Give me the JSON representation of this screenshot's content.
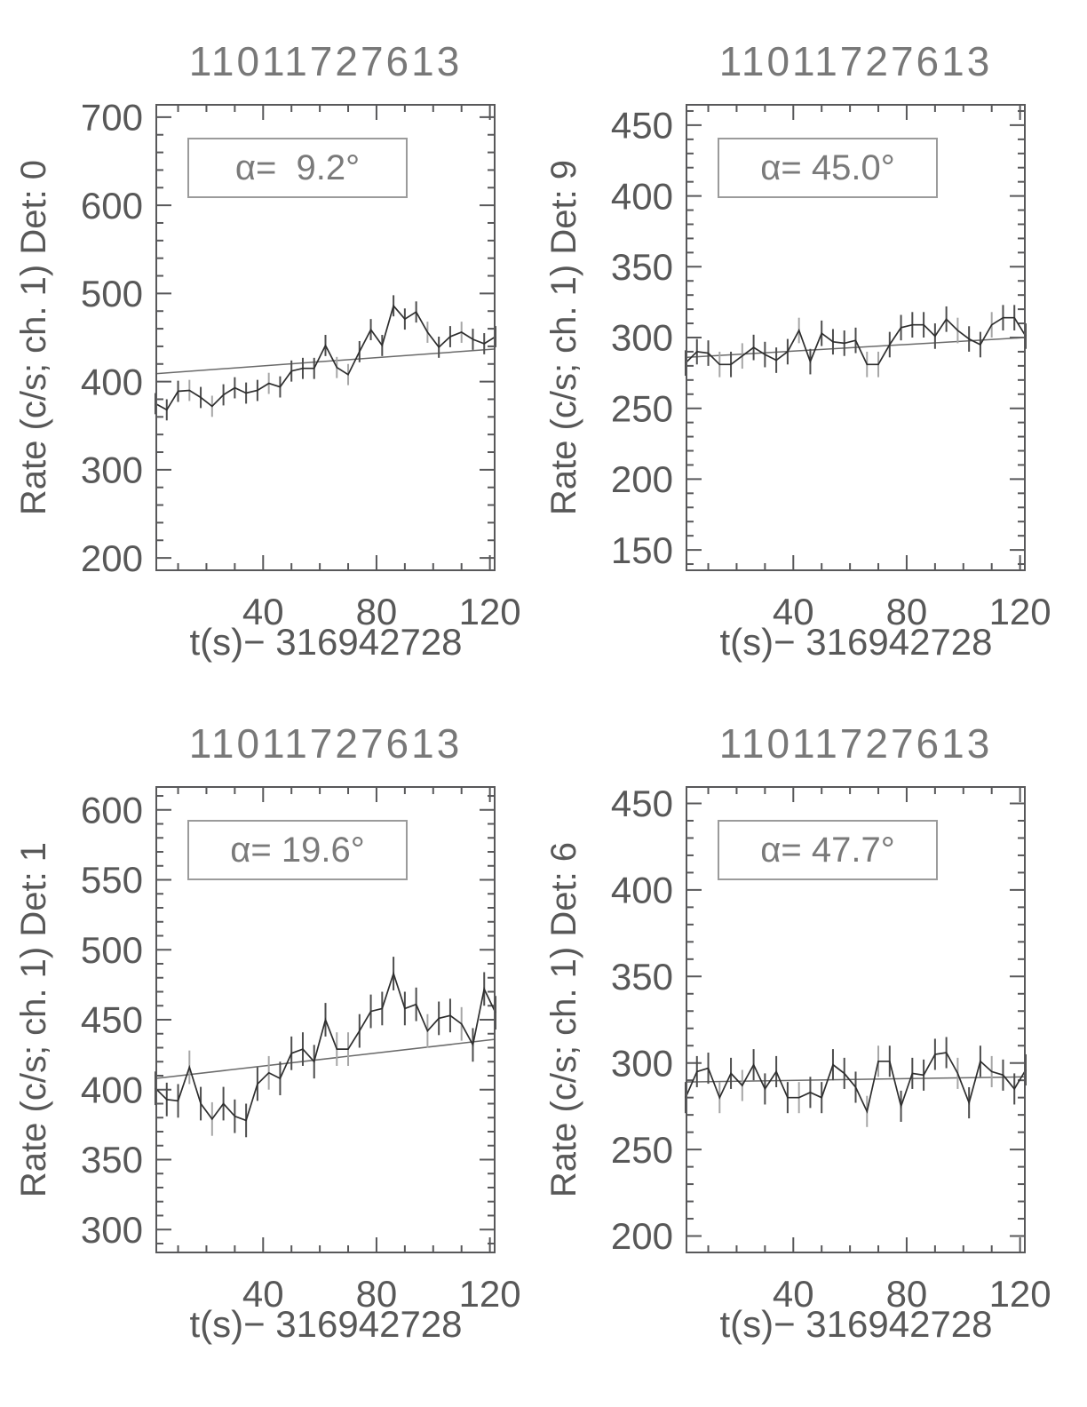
{
  "figure": {
    "kind": "light-curve-grid",
    "rows": 2,
    "cols": 2,
    "shared_title": "11011727613",
    "shared_xlabel": "t(s)− 316942728"
  },
  "colors": {
    "background": "#ffffff",
    "axis": "#58585a",
    "curve": "#2e2e2e",
    "error_bar": "#4d4d4d",
    "error_bar_gray": "#a6a6a6",
    "trend": "#6a6a6a",
    "tick_text": "#585858",
    "title_text": "#787878",
    "annotation_text": "#7a7a7a",
    "annotation_border": "#9b9b9b"
  },
  "chart_data": [
    {
      "type": "line",
      "panel": "top-left",
      "detector": "Det: 0",
      "title": "11011727613",
      "ylabel": "Rate (c/s; ch. 1) Det: 0",
      "xlabel": "t(s)− 316942728",
      "alpha_label": "α=  9.2°",
      "alpha_deg": 9.2,
      "x_start": 2,
      "x_step": 4,
      "xlim": [
        2,
        122
      ],
      "xticks": [
        40,
        80,
        120
      ],
      "x_minor_step": 10,
      "ylim": [
        185,
        715
      ],
      "yticks": [
        200,
        300,
        400,
        500,
        600,
        700
      ],
      "y_minor_step": 20,
      "err": 12,
      "trend": [
        409,
        437
      ],
      "values": [
        375,
        368,
        389,
        390,
        382,
        372,
        385,
        393,
        387,
        390,
        398,
        394,
        412,
        415,
        415,
        441,
        416,
        408,
        434,
        459,
        441,
        486,
        471,
        479,
        456,
        439,
        451,
        456,
        448,
        443,
        451
      ]
    },
    {
      "type": "line",
      "panel": "top-right",
      "detector": "Det: 9",
      "title": "11011727613",
      "ylabel": "Rate (c/s; ch. 1) Det: 9",
      "xlabel": "t(s)− 316942728",
      "alpha_label": "α= 45.0°",
      "alpha_deg": 45.0,
      "x_start": 2,
      "x_step": 4,
      "xlim": [
        2,
        122
      ],
      "xticks": [
        40,
        80,
        120
      ],
      "x_minor_step": 10,
      "ylim": [
        135,
        465
      ],
      "yticks": [
        150,
        200,
        250,
        300,
        350,
        400,
        450
      ],
      "y_minor_step": 10,
      "err": 9,
      "trend": [
        286,
        300
      ],
      "values": [
        282,
        290,
        289,
        281,
        281,
        287,
        293,
        288,
        284,
        290,
        305,
        283,
        303,
        297,
        296,
        298,
        281,
        281,
        295,
        307,
        309,
        309,
        301,
        313,
        305,
        299,
        295,
        309,
        314,
        314,
        301
      ]
    },
    {
      "type": "line",
      "panel": "bottom-left",
      "detector": "Det: 1",
      "title": "11011727613",
      "ylabel": "Rate (c/s; ch. 1) Det: 1",
      "xlabel": "t(s)− 316942728",
      "alpha_label": "α= 19.6°",
      "alpha_deg": 19.6,
      "x_start": 2,
      "x_step": 4,
      "xlim": [
        2,
        122
      ],
      "xticks": [
        40,
        80,
        120
      ],
      "x_minor_step": 10,
      "ylim": [
        283,
        617
      ],
      "yticks": [
        300,
        350,
        400,
        450,
        500,
        550,
        600
      ],
      "y_minor_step": 10,
      "err": 12,
      "trend": [
        408,
        436
      ],
      "values": [
        401,
        393,
        392,
        416,
        390,
        379,
        390,
        381,
        378,
        404,
        412,
        408,
        426,
        429,
        420,
        450,
        429,
        429,
        442,
        456,
        458,
        483,
        458,
        461,
        442,
        451,
        453,
        447,
        432,
        472,
        455
      ]
    },
    {
      "type": "line",
      "panel": "bottom-right",
      "detector": "Det: 6",
      "title": "11011727613",
      "ylabel": "Rate (c/s; ch. 1) Det: 6",
      "xlabel": "t(s)− 316942728",
      "alpha_label": "α= 47.7°",
      "alpha_deg": 47.7,
      "x_start": 2,
      "x_step": 4,
      "xlim": [
        2,
        122
      ],
      "xticks": [
        40,
        80,
        120
      ],
      "x_minor_step": 10,
      "ylim": [
        190,
        460
      ],
      "yticks": [
        200,
        250,
        300,
        350,
        400,
        450
      ],
      "y_minor_step": 10,
      "err": 9,
      "trend": [
        289,
        292
      ],
      "values": [
        280,
        295,
        297,
        280,
        294,
        287,
        299,
        285,
        295,
        280,
        280,
        283,
        280,
        299,
        294,
        286,
        272,
        301,
        301,
        275,
        294,
        293,
        305,
        306,
        294,
        277,
        301,
        295,
        293,
        285,
        296
      ]
    }
  ]
}
